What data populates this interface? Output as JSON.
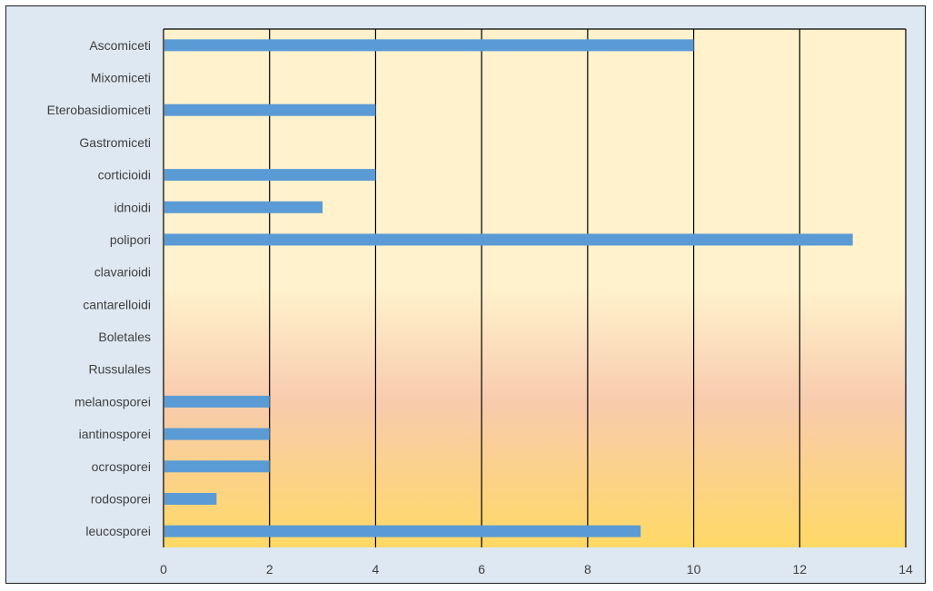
{
  "chart_data": {
    "type": "bar",
    "orientation": "horizontal",
    "title": "",
    "xlabel": "",
    "ylabel": "",
    "categories": [
      "Ascomiceti",
      "Mixomiceti",
      "Eterobasidiomiceti",
      "Gastromiceti",
      "corticioidi",
      "idnoidi",
      "polipori",
      "clavarioidi",
      "cantarelloidi",
      "Boletales",
      "Russulales",
      "melanosporei",
      "iantinosporei",
      "ocrosporei",
      "rodosporei",
      "leucosporei"
    ],
    "values": [
      10,
      0,
      4,
      0,
      4,
      3,
      13,
      0,
      0,
      0,
      0,
      2,
      2,
      2,
      1,
      9
    ],
    "xlim": [
      0,
      14
    ],
    "xticks": [
      "0",
      "2",
      "4",
      "6",
      "8",
      "10",
      "12",
      "14"
    ],
    "grid": "vertical",
    "legend": "none",
    "colors": {
      "bar": "#5b9bd5",
      "outer_background": "#dde8f3",
      "plot_gradient_top": "#fff2cc",
      "plot_gradient_middle": "#f8cbad",
      "plot_gradient_bottom": "#ffd966",
      "gridline": "#000000"
    }
  }
}
